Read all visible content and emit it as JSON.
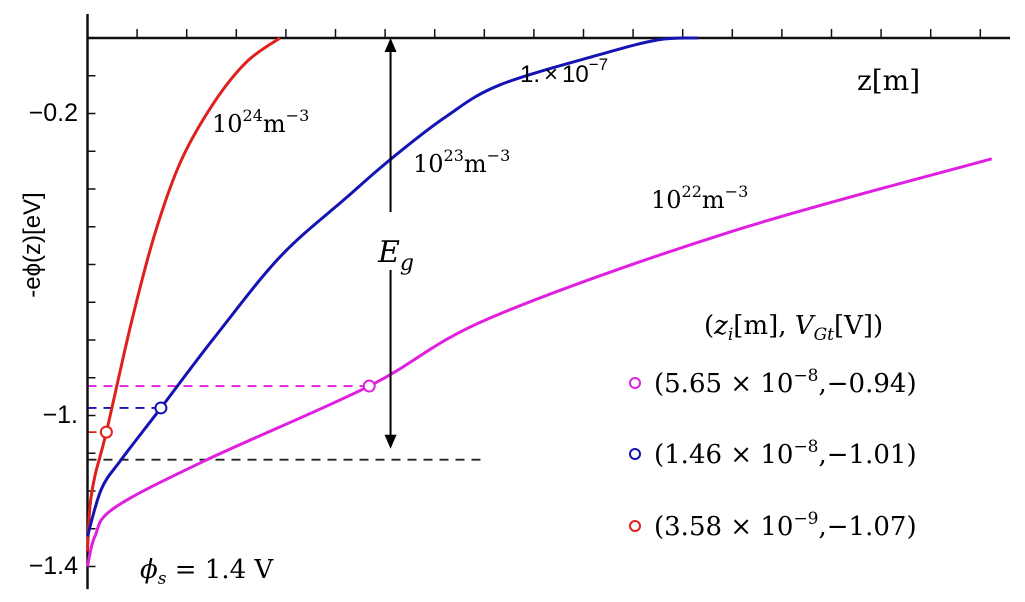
{
  "chart_data": {
    "type": "line",
    "xlabel": "z[m]",
    "ylabel": "-eϕ(z)[eV]",
    "xlim": [
      0,
      1.86e-07
    ],
    "ylim": [
      -1.46,
      0
    ],
    "x_tick_step": 1e-08,
    "y_tick_step": 0.1,
    "x_tick_labels": [
      {
        "value": 1e-07,
        "mantissa": "1.",
        "times": "×",
        "base": "10",
        "exp": "−7"
      }
    ],
    "y_tick_labels": [
      {
        "value": -0.2,
        "label": "−0.2"
      },
      {
        "value": -1.0,
        "label": "−1."
      },
      {
        "value": -1.4,
        "label": "−1.4"
      }
    ],
    "grid": false,
    "series": [
      {
        "name": "10^24 m^-3",
        "color": "#e0201c",
        "label": {
          "base": "10",
          "exp": "24",
          "unit": "m",
          "uexp": "−3"
        },
        "points": [
          [
            0,
            -1.36
          ],
          [
            5e-10,
            -1.24
          ],
          [
            1.5e-09,
            -1.16
          ],
          [
            3.8e-09,
            -1.044
          ],
          [
            8.8e-09,
            -0.756
          ],
          [
            1.35e-08,
            -0.522
          ],
          [
            1.88e-08,
            -0.327
          ],
          [
            2.55e-08,
            -0.171
          ],
          [
            3.21e-08,
            -0.063
          ],
          [
            3.88e-08,
            0
          ]
        ]
      },
      {
        "name": "10^23 m^-3",
        "color": "#1414b4",
        "label": {
          "base": "10",
          "exp": "23",
          "unit": "m",
          "uexp": "−3"
        },
        "points": [
          [
            0,
            -1.32
          ],
          [
            2.8e-09,
            -1.195
          ],
          [
            6.8e-09,
            -1.117
          ],
          [
            1.48e-08,
            -0.98
          ],
          [
            2.55e-08,
            -0.795
          ],
          [
            3.88e-08,
            -0.58
          ],
          [
            5.21e-08,
            -0.424
          ],
          [
            6.15e-08,
            -0.317
          ],
          [
            7.21e-08,
            -0.21
          ],
          [
            8.3e-08,
            -0.125
          ],
          [
            1.03e-07,
            -0.045
          ],
          [
            1.15e-07,
            -0.005
          ],
          [
            1.23e-07,
            0
          ]
        ]
      },
      {
        "name": "10^22 m^-3",
        "color": "#e020e0",
        "label": {
          "base": "10",
          "exp": "22",
          "unit": "m",
          "uexp": "−3"
        },
        "points": [
          [
            0,
            -1.4
          ],
          [
            1.5e-09,
            -1.32
          ],
          [
            5.5e-09,
            -1.244
          ],
          [
            2.41e-08,
            -1.117
          ],
          [
            5.68e-08,
            -0.922
          ],
          [
            8.11e-08,
            -0.742
          ],
          [
            1.295e-07,
            -0.514
          ],
          [
            1.823e-07,
            -0.32
          ]
        ]
      }
    ],
    "markers": [
      {
        "color": "#e020e0",
        "x": 5.68e-08,
        "y": -0.922
      },
      {
        "color": "#1414b4",
        "x": 1.48e-08,
        "y": -0.98
      },
      {
        "color": "#e0201c",
        "x": 3.8e-09,
        "y": -1.044
      }
    ],
    "dashed_lines": [
      {
        "color": "#e020e0",
        "y": -0.922,
        "x_end": 5.68e-08
      },
      {
        "color": "#1414b4",
        "y": -0.98,
        "x_end": 1.48e-08
      },
      {
        "color": "#e0201c",
        "y": -1.044,
        "x_end": 3.8e-09
      },
      {
        "color": "#222222",
        "y": -1.117,
        "x_end": 7.98e-08
      }
    ],
    "eg_arrow": {
      "x": 6.11e-08,
      "y_top": 0,
      "y_bottom": -1.088,
      "label": "E",
      "label_sub": "g"
    },
    "annotation_phi": {
      "sym": "ϕ",
      "sub": "s",
      "text": " = 1.4 V"
    },
    "legend": {
      "title": {
        "open": "(",
        "z": "z",
        "zsub": "i",
        "zunit": "[m], ",
        "v": "V",
        "vsub": "Gt",
        "vunit": "[V])"
      },
      "entries": [
        {
          "color": "#e020e0",
          "mantissa": "(5.65 × 10",
          "exp": "−8",
          "rest": ",−0.94)"
        },
        {
          "color": "#1414b4",
          "mantissa": "(1.46 × 10",
          "exp": "−8",
          "rest": ",−1.01)"
        },
        {
          "color": "#e0201c",
          "mantissa": "(3.58 × 10",
          "exp": "−9",
          "rest": ",−1.07)"
        }
      ]
    }
  }
}
